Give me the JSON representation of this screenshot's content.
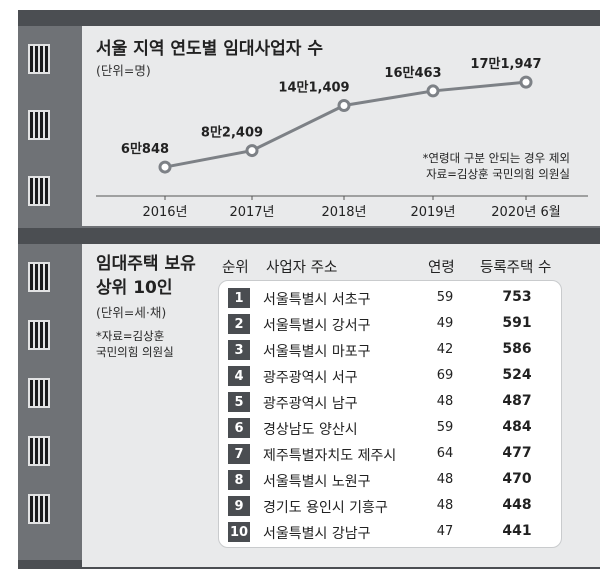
{
  "chart_data": [
    {
      "type": "line",
      "title": "서울 지역 연도별 임대사업자 수",
      "unit": "(단위=명)",
      "categories": [
        "2016년",
        "2017년",
        "2018년",
        "2019년",
        "2020년 6월"
      ],
      "values": [
        60848,
        82409,
        141409,
        160463,
        171947
      ],
      "data_labels": [
        "6만848",
        "8만2,409",
        "14만1,409",
        "16만463",
        "17만1,947"
      ],
      "notes": [
        "*연령대 구분 안되는 경우 제외",
        "자료=김상훈 국민의힘 의원실"
      ],
      "colors": {
        "line": "#7d8186",
        "marker": "#7d8186",
        "marker_fill": "#ffffff"
      }
    },
    {
      "type": "table",
      "title_lines": [
        "임대주택 보유",
        "상위 10인"
      ],
      "unit": "(단위=세·채)",
      "source_lines": [
        "*자료=김상훈",
        "국민의힘 의원실"
      ],
      "columns": [
        "순위",
        "사업자 주소",
        "연령",
        "등록주택 수"
      ],
      "rows": [
        {
          "rank": "1",
          "address": "서울특별시 서초구",
          "age": "59",
          "count": "753"
        },
        {
          "rank": "2",
          "address": "서울특별시 강서구",
          "age": "49",
          "count": "591"
        },
        {
          "rank": "3",
          "address": "서울특별시 마포구",
          "age": "42",
          "count": "586"
        },
        {
          "rank": "4",
          "address": "광주광역시 서구",
          "age": "69",
          "count": "524"
        },
        {
          "rank": "5",
          "address": "광주광역시 남구",
          "age": "48",
          "count": "487"
        },
        {
          "rank": "6",
          "address": "경상남도 양산시",
          "age": "59",
          "count": "484"
        },
        {
          "rank": "7",
          "address": "제주특별자치도 제주시",
          "age": "64",
          "count": "477"
        },
        {
          "rank": "8",
          "address": "서울특별시 노원구",
          "age": "48",
          "count": "470"
        },
        {
          "rank": "9",
          "address": "경기도 용인시 기흥구",
          "age": "48",
          "count": "448"
        },
        {
          "rank": "10",
          "address": "서울특별시 강남구",
          "age": "47",
          "count": "441"
        }
      ]
    }
  ]
}
